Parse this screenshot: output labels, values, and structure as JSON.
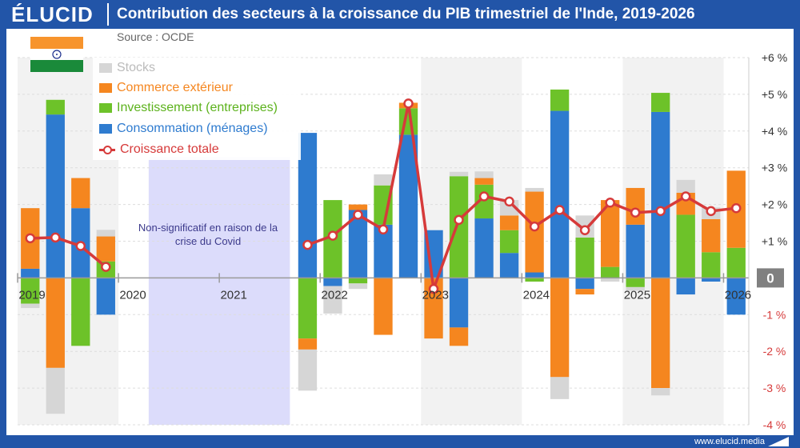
{
  "header": {
    "logo": "ÉLUCID",
    "title": "Contribution des secteurs à la croissance du PIB trimestriel de l'Inde, 2019-2026",
    "source": "Source : OCDE"
  },
  "footer": {
    "url": "www.elucid.media"
  },
  "covid_note": "Non-significatif en raison de la crise du Covid",
  "colors": {
    "stocks": "#d6d6d6",
    "commerce": "#f5861f",
    "investissement": "#6dc229",
    "consommation": "#2e7bcf",
    "croissance": "#d63a3a",
    "covid_band": "#dcdcfb",
    "year_band": "#f2f2f2",
    "zero_label_bg": "#808080",
    "neg_tick": "#d63a3a"
  },
  "chart_data": {
    "type": "bar",
    "stacked": true,
    "title": "Contribution des secteurs à la croissance du PIB trimestriel de l'Inde, 2019-2026",
    "ylim": [
      -4,
      6
    ],
    "y_ticks": [
      {
        "value": 6,
        "label": "+6 %"
      },
      {
        "value": 5,
        "label": "+5 %"
      },
      {
        "value": 4,
        "label": "+4 %"
      },
      {
        "value": 3,
        "label": "+3 %"
      },
      {
        "value": 2,
        "label": "+2 %"
      },
      {
        "value": 1,
        "label": "+1 %"
      },
      {
        "value": 0,
        "label": "0"
      },
      {
        "value": -1,
        "label": "-1 %"
      },
      {
        "value": -2,
        "label": "-2 %"
      },
      {
        "value": -3,
        "label": "-3 %"
      },
      {
        "value": -4,
        "label": "-4 %"
      }
    ],
    "x_labels": [
      {
        "label": "2019",
        "index": 0
      },
      {
        "label": "2020",
        "index": 4
      },
      {
        "label": "2021",
        "index": 8
      },
      {
        "label": "2022",
        "index": 12
      },
      {
        "label": "2023",
        "index": 16
      },
      {
        "label": "2024",
        "index": 20
      },
      {
        "label": "2025",
        "index": 24
      },
      {
        "label": "2026",
        "index": 28
      }
    ],
    "n_periods": 29,
    "covid_period": [
      5,
      10
    ],
    "shaded_years": [
      [
        0,
        3
      ],
      [
        16,
        19
      ],
      [
        24,
        27
      ]
    ],
    "legend_position": "top-left",
    "series": [
      {
        "name": "Consommation (ménages)",
        "key": "consommation",
        "values": [
          0.25,
          4.45,
          1.9,
          -1.0,
          null,
          null,
          null,
          null,
          null,
          null,
          null,
          3.95,
          -0.22,
          1.85,
          1.45,
          3.9,
          1.3,
          -1.35,
          1.62,
          0.68,
          0.15,
          4.55,
          -0.3,
          0.0,
          1.45,
          4.52,
          -0.45,
          -0.1,
          -1.0
        ]
      },
      {
        "name": "Investissement (entreprises)",
        "key": "investissement",
        "values": [
          -0.7,
          0.4,
          -1.85,
          0.45,
          null,
          null,
          null,
          null,
          null,
          null,
          null,
          -1.65,
          2.12,
          -0.15,
          1.07,
          0.72,
          0.0,
          2.77,
          0.92,
          0.62,
          -0.1,
          0.58,
          1.1,
          0.3,
          -0.25,
          0.52,
          1.72,
          0.7,
          0.82
        ]
      },
      {
        "name": "Commerce extérieur",
        "key": "commerce",
        "values": [
          1.65,
          -2.45,
          0.82,
          0.68,
          null,
          null,
          null,
          null,
          null,
          null,
          null,
          -0.3,
          0.0,
          0.15,
          -1.55,
          0.15,
          -1.65,
          -0.5,
          0.18,
          0.4,
          2.2,
          -2.7,
          -0.15,
          1.82,
          1.0,
          -3.0,
          0.6,
          0.9,
          2.1
        ]
      },
      {
        "name": "Stocks",
        "key": "stocks",
        "values": [
          -0.12,
          -1.25,
          0.0,
          0.18,
          null,
          null,
          null,
          null,
          null,
          null,
          null,
          -1.12,
          -0.75,
          -0.15,
          0.3,
          0.0,
          0.0,
          0.12,
          0.18,
          0.42,
          0.1,
          -0.6,
          0.6,
          -0.1,
          -0.1,
          -0.2,
          0.35,
          0.32,
          0.0
        ]
      },
      {
        "name": "Croissance totale",
        "key": "croissance",
        "type": "line",
        "values": [
          1.08,
          1.1,
          0.87,
          0.3,
          null,
          null,
          null,
          null,
          null,
          null,
          null,
          0.9,
          1.15,
          1.72,
          1.32,
          4.75,
          -0.3,
          1.58,
          2.22,
          2.08,
          1.4,
          1.85,
          1.3,
          2.05,
          1.78,
          1.82,
          2.22,
          1.82,
          1.9
        ]
      }
    ],
    "legend": [
      {
        "key": "stocks",
        "label": "Stocks"
      },
      {
        "key": "commerce",
        "label": "Commerce extérieur"
      },
      {
        "key": "investissement",
        "label": "Investissement (entreprises)"
      },
      {
        "key": "consommation",
        "label": "Consommation (ménages)"
      },
      {
        "key": "croissance",
        "label": "Croissance totale"
      }
    ]
  }
}
